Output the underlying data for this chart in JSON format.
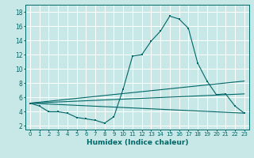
{
  "xlabel": "Humidex (Indice chaleur)",
  "bg_color": "#c8e8e8",
  "grid_color": "#ffffff",
  "line_color": "#006666",
  "xlim": [
    -0.5,
    23.5
  ],
  "ylim": [
    1.5,
    19.0
  ],
  "xticks": [
    0,
    1,
    2,
    3,
    4,
    5,
    6,
    7,
    8,
    9,
    10,
    11,
    12,
    13,
    14,
    15,
    16,
    17,
    18,
    19,
    20,
    21,
    22,
    23
  ],
  "yticks": [
    2,
    4,
    6,
    8,
    10,
    12,
    14,
    16,
    18
  ],
  "line1_x": [
    0,
    1,
    2,
    3,
    4,
    5,
    6,
    7,
    8,
    9,
    10,
    11,
    12,
    13,
    14,
    15,
    16,
    17,
    18,
    19,
    20,
    21,
    22,
    23
  ],
  "line1_y": [
    5.2,
    4.8,
    4.0,
    4.0,
    3.8,
    3.2,
    3.0,
    2.8,
    2.4,
    3.3,
    7.2,
    11.8,
    12.0,
    13.9,
    15.3,
    17.4,
    17.0,
    15.7,
    10.8,
    8.3,
    6.4,
    6.5,
    4.8,
    3.8
  ],
  "line2_x": [
    0,
    23
  ],
  "line2_y": [
    5.2,
    8.3
  ],
  "line3_x": [
    0,
    23
  ],
  "line3_y": [
    5.2,
    6.5
  ],
  "line4_x": [
    0,
    23
  ],
  "line4_y": [
    5.2,
    3.8
  ],
  "marker_x1": [
    0,
    1,
    2,
    3,
    4,
    5,
    6,
    7,
    8,
    9,
    10,
    11,
    12,
    13,
    14,
    15,
    16,
    17,
    18,
    19,
    20,
    21,
    22,
    23
  ],
  "marker_y1": [
    5.2,
    4.8,
    4.0,
    4.0,
    3.8,
    3.2,
    3.0,
    2.8,
    2.4,
    3.3,
    7.2,
    11.8,
    12.0,
    13.9,
    15.3,
    17.4,
    17.0,
    15.7,
    10.8,
    8.3,
    6.4,
    6.5,
    4.8,
    3.8
  ]
}
